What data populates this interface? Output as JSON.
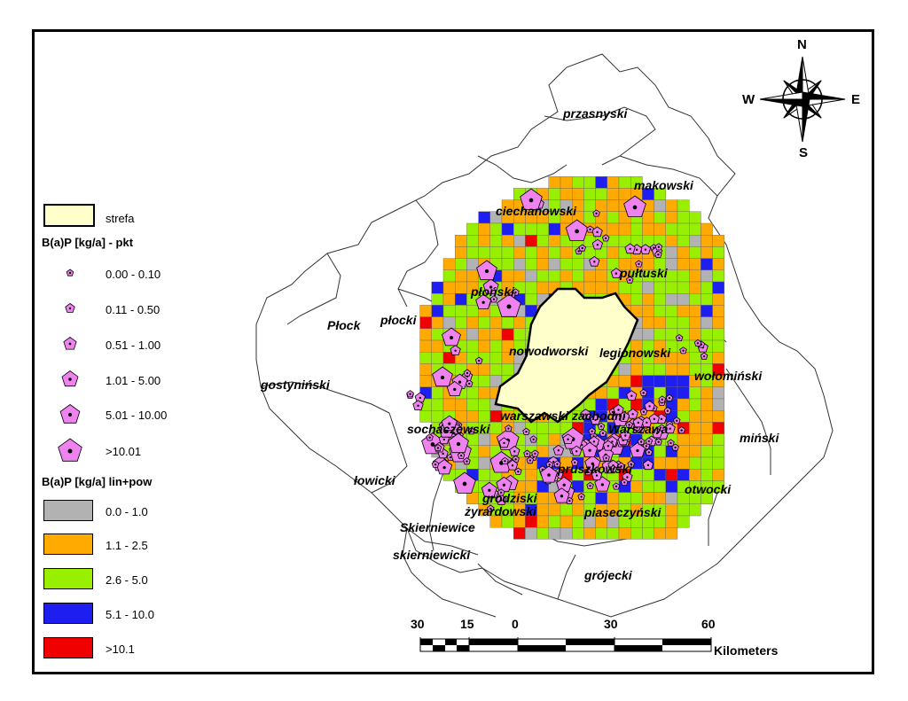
{
  "regions": [
    {
      "id": "przasnyski",
      "label": "przasnyski"
    },
    {
      "id": "makowski",
      "label": "makowski"
    },
    {
      "id": "ciechanowski",
      "label": "ciechanowski"
    },
    {
      "id": "plonski",
      "label": "płoński"
    },
    {
      "id": "pultuski",
      "label": "pułtuski"
    },
    {
      "id": "plock",
      "label": "Płock"
    },
    {
      "id": "plocki",
      "label": "płocki"
    },
    {
      "id": "nowodworski",
      "label": "nowodworski"
    },
    {
      "id": "legionowski",
      "label": "legionowski"
    },
    {
      "id": "wolominski",
      "label": "wołomiński"
    },
    {
      "id": "gostyninski",
      "label": "gostyniński"
    },
    {
      "id": "warszawski-zachodni",
      "label": "warszawski zachodni"
    },
    {
      "id": "warszawa",
      "label": "Warszawa"
    },
    {
      "id": "sochaczewski",
      "label": "sochaczewski"
    },
    {
      "id": "minski",
      "label": "miński"
    },
    {
      "id": "pruszkowski",
      "label": "pruszkowski"
    },
    {
      "id": "lowicki",
      "label": "łowicki"
    },
    {
      "id": "grodziski",
      "label": "grodziski"
    },
    {
      "id": "otwocki",
      "label": "otwocki"
    },
    {
      "id": "zyrardowski",
      "label": "żyrardowski"
    },
    {
      "id": "piaseczynski",
      "label": "piaseczyński"
    },
    {
      "id": "skierniewice",
      "label": "Skierniewice"
    },
    {
      "id": "skierniewicki",
      "label": "skierniewicki"
    },
    {
      "id": "grojecki",
      "label": "grójecki"
    }
  ],
  "legend": {
    "zone_label": "strefa",
    "zone_color": "#ffffcc",
    "points_title": "B(a)P [kg/a] - pkt",
    "point_color": "#ee82ee",
    "point_classes": [
      "0.00 - 0.10",
      "0.11 - 0.50",
      "0.51 - 1.00",
      "1.01 - 5.00",
      "5.01 - 10.00",
      ">10.01"
    ],
    "area_title": "B(a)P [kg/a] lin+pow",
    "area_classes": [
      {
        "label": "0.0 - 1.0",
        "color": "#b2b2b2"
      },
      {
        "label": "1.1 - 2.5",
        "color": "#ffaa00"
      },
      {
        "label": "2.6 - 5.0",
        "color": "#98f000"
      },
      {
        "label": "5.1 - 10.0",
        "color": "#1e1ef0"
      },
      {
        "label": ">10.1",
        "color": "#f00000"
      }
    ]
  },
  "scale_bar": {
    "ticks": [
      "30",
      "15",
      "0",
      "30",
      "60"
    ],
    "unit": "Kilometers"
  },
  "compass": {
    "n": "N",
    "s": "S",
    "e": "E",
    "w": "W"
  }
}
